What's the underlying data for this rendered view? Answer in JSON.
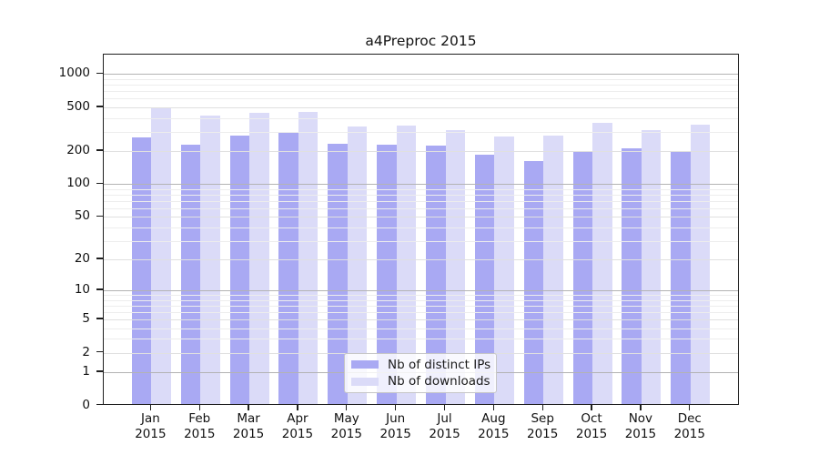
{
  "chart_data": {
    "type": "bar",
    "title": "a4Preproc 2015",
    "categories": [
      "Jan",
      "Feb",
      "Mar",
      "Apr",
      "May",
      "Jun",
      "Jul",
      "Aug",
      "Sep",
      "Oct",
      "Nov",
      "Dec"
    ],
    "x_year_label": "2015",
    "series": [
      {
        "name": "Nb of distinct IPs",
        "color": "#a9a9f3",
        "values": [
          260,
          222,
          270,
          285,
          228,
          224,
          218,
          179,
          158,
          194,
          204,
          194
        ]
      },
      {
        "name": "Nb of downloads",
        "color": "#dbdbf8",
        "values": [
          485,
          412,
          435,
          437,
          327,
          332,
          304,
          262,
          271,
          351,
          304,
          340
        ]
      }
    ],
    "yscale": "log10(value+1)",
    "yticks": [
      1000,
      500,
      200,
      100,
      50,
      20,
      10,
      5,
      2,
      1,
      0
    ],
    "ylim": [
      0,
      1500
    ],
    "grid": "horizontal",
    "legend": {
      "position": "bottom-center-inside"
    },
    "colors": {
      "spine": "#1f1f1f",
      "major_gridline": "#b3b3b3",
      "mid_gridline": "#e0e0e0",
      "minor_gridline": "#ededed"
    }
  }
}
